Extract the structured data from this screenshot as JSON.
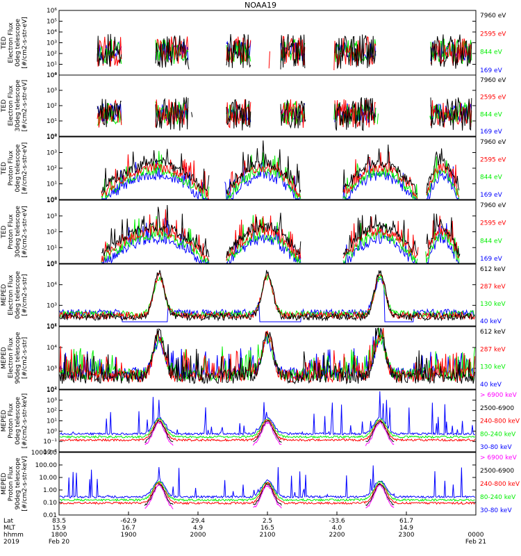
{
  "title": "NOAA19",
  "colors": {
    "black": "#000000",
    "red": "#ff0000",
    "green": "#00ee00",
    "blue": "#0000ff",
    "magenta": "#ff00ff"
  },
  "chart_data": [
    {
      "type": "line",
      "ylabel_lines": [
        "TED",
        "Electron Flux",
        "0deg telescope",
        "[#/cm2-s-str-eV]"
      ],
      "yscale": "log",
      "ytick_labels": [
        "10⁶",
        "10⁵",
        "10⁴",
        "10³",
        "10²",
        "10¹",
        "10⁰"
      ],
      "series": [
        {
          "name": "7960 eV",
          "color": "#000000"
        },
        {
          "name": "2595 eV",
          "color": "#ff0000"
        },
        {
          "name": "844 eV",
          "color": "#00ee00"
        },
        {
          "name": "169 eV",
          "color": "#0000ff"
        }
      ]
    },
    {
      "type": "line",
      "ylabel_lines": [
        "TED",
        "Electron Flux",
        "30deg telescope",
        "[#/cm2-s-str-eV]"
      ],
      "yscale": "log",
      "ytick_labels": [
        "10⁴",
        "10³",
        "10²",
        "10¹",
        "10⁰"
      ],
      "series": [
        {
          "name": "7960 eV",
          "color": "#000000"
        },
        {
          "name": "2595 eV",
          "color": "#ff0000"
        },
        {
          "name": "844 eV",
          "color": "#00ee00"
        },
        {
          "name": "169 eV",
          "color": "#0000ff"
        }
      ]
    },
    {
      "type": "line",
      "ylabel_lines": [
        "TED",
        "Proton Flux",
        "0deg telescope",
        "[#/cm2-s-str-eV]"
      ],
      "yscale": "log",
      "ytick_labels": [
        "10⁴",
        "10³",
        "10²",
        "10¹",
        "10⁰"
      ],
      "series": [
        {
          "name": "7960 eV",
          "color": "#000000"
        },
        {
          "name": "2595 eV",
          "color": "#ff0000"
        },
        {
          "name": "844 eV",
          "color": "#00ee00"
        },
        {
          "name": "169 eV",
          "color": "#0000ff"
        }
      ]
    },
    {
      "type": "line",
      "ylabel_lines": [
        "TED",
        "Proton Flux",
        "30deg telescope",
        "[#/cm2-s-str-eV]"
      ],
      "yscale": "log",
      "ytick_labels": [
        "10⁴",
        "10³",
        "10²",
        "10¹",
        "10⁰"
      ],
      "series": [
        {
          "name": "7960 eV",
          "color": "#000000"
        },
        {
          "name": "2595 eV",
          "color": "#ff0000"
        },
        {
          "name": "844 eV",
          "color": "#00ee00"
        },
        {
          "name": "169 eV",
          "color": "#0000ff"
        }
      ]
    },
    {
      "type": "line",
      "ylabel_lines": [
        "MEPED",
        "Electron Flux",
        "0deg telescope",
        "[#/cm2-s-str]"
      ],
      "yscale": "log",
      "ytick_labels": [
        "10⁵",
        "10⁴",
        "10³",
        "10²"
      ],
      "series": [
        {
          "name": "612 keV",
          "color": "#000000"
        },
        {
          "name": "287 keV",
          "color": "#ff0000"
        },
        {
          "name": "130 keV",
          "color": "#00ee00"
        },
        {
          "name": "40 keV",
          "color": "#0000ff"
        }
      ]
    },
    {
      "type": "line",
      "ylabel_lines": [
        "MEPED",
        "Electron Flux",
        "90deg telescope",
        "[#/cm2-s-str]"
      ],
      "yscale": "log",
      "ytick_labels": [
        "10⁵",
        "10⁴",
        "10³",
        "10²"
      ],
      "series": [
        {
          "name": "612 keV",
          "color": "#000000"
        },
        {
          "name": "287 keV",
          "color": "#ff0000"
        },
        {
          "name": "130 keV",
          "color": "#00ee00"
        },
        {
          "name": "40 keV",
          "color": "#0000ff"
        }
      ]
    },
    {
      "type": "line",
      "ylabel_lines": [
        "MEPED",
        "Proton Flux",
        "0deg telescope",
        "[#/cm2-s-str-keV]"
      ],
      "yscale": "log",
      "ytick_labels": [
        "10⁴",
        "10³",
        "10²",
        "10¹",
        "10⁰",
        "10⁻¹",
        "10⁻²"
      ],
      "series": [
        {
          "name": "> 6900 keV",
          "color": "#ff00ff"
        },
        {
          "name": "2500-6900",
          "color": "#000000"
        },
        {
          "name": "240-800 keV",
          "color": "#ff0000"
        },
        {
          "name": "80-240 keV",
          "color": "#00ee00"
        },
        {
          "name": "30-80 keV",
          "color": "#0000ff"
        }
      ]
    },
    {
      "type": "line",
      "ylabel_lines": [
        "MEPED",
        "Proton Flux",
        "90deg telescope",
        "[#/cm2-s-str-keV]"
      ],
      "yscale": "log",
      "ytick_labels": [
        "1000.00",
        "100.00",
        "10.00",
        "1.00",
        "0.10",
        "0.01"
      ],
      "series": [
        {
          "name": "> 6900 keV",
          "color": "#ff00ff"
        },
        {
          "name": "2500-6900",
          "color": "#000000"
        },
        {
          "name": "240-800 keV",
          "color": "#ff0000"
        },
        {
          "name": "80-240 keV",
          "color": "#00ee00"
        },
        {
          "name": "30-80 keV",
          "color": "#0000ff"
        }
      ]
    }
  ],
  "xaxis": {
    "row_labels": [
      "Lat",
      "MLT",
      "hhmm",
      "2019"
    ],
    "ticks": [
      {
        "lat": "83.5",
        "mlt": "15.9",
        "hhmm": "1800",
        "date": "Feb 20"
      },
      {
        "lat": "-62.9",
        "mlt": "16.7",
        "hhmm": "1900",
        "date": ""
      },
      {
        "lat": "29.4",
        "mlt": "4.9",
        "hhmm": "2000",
        "date": ""
      },
      {
        "lat": "2.5",
        "mlt": "16.5",
        "hhmm": "2100",
        "date": ""
      },
      {
        "lat": "-33.6",
        "mlt": "4.0",
        "hhmm": "2200",
        "date": ""
      },
      {
        "lat": "61.7",
        "mlt": "14.9",
        "hhmm": "2300",
        "date": ""
      },
      {
        "lat": "",
        "mlt": "",
        "hhmm": "0000",
        "date": "Feb 21"
      }
    ]
  }
}
